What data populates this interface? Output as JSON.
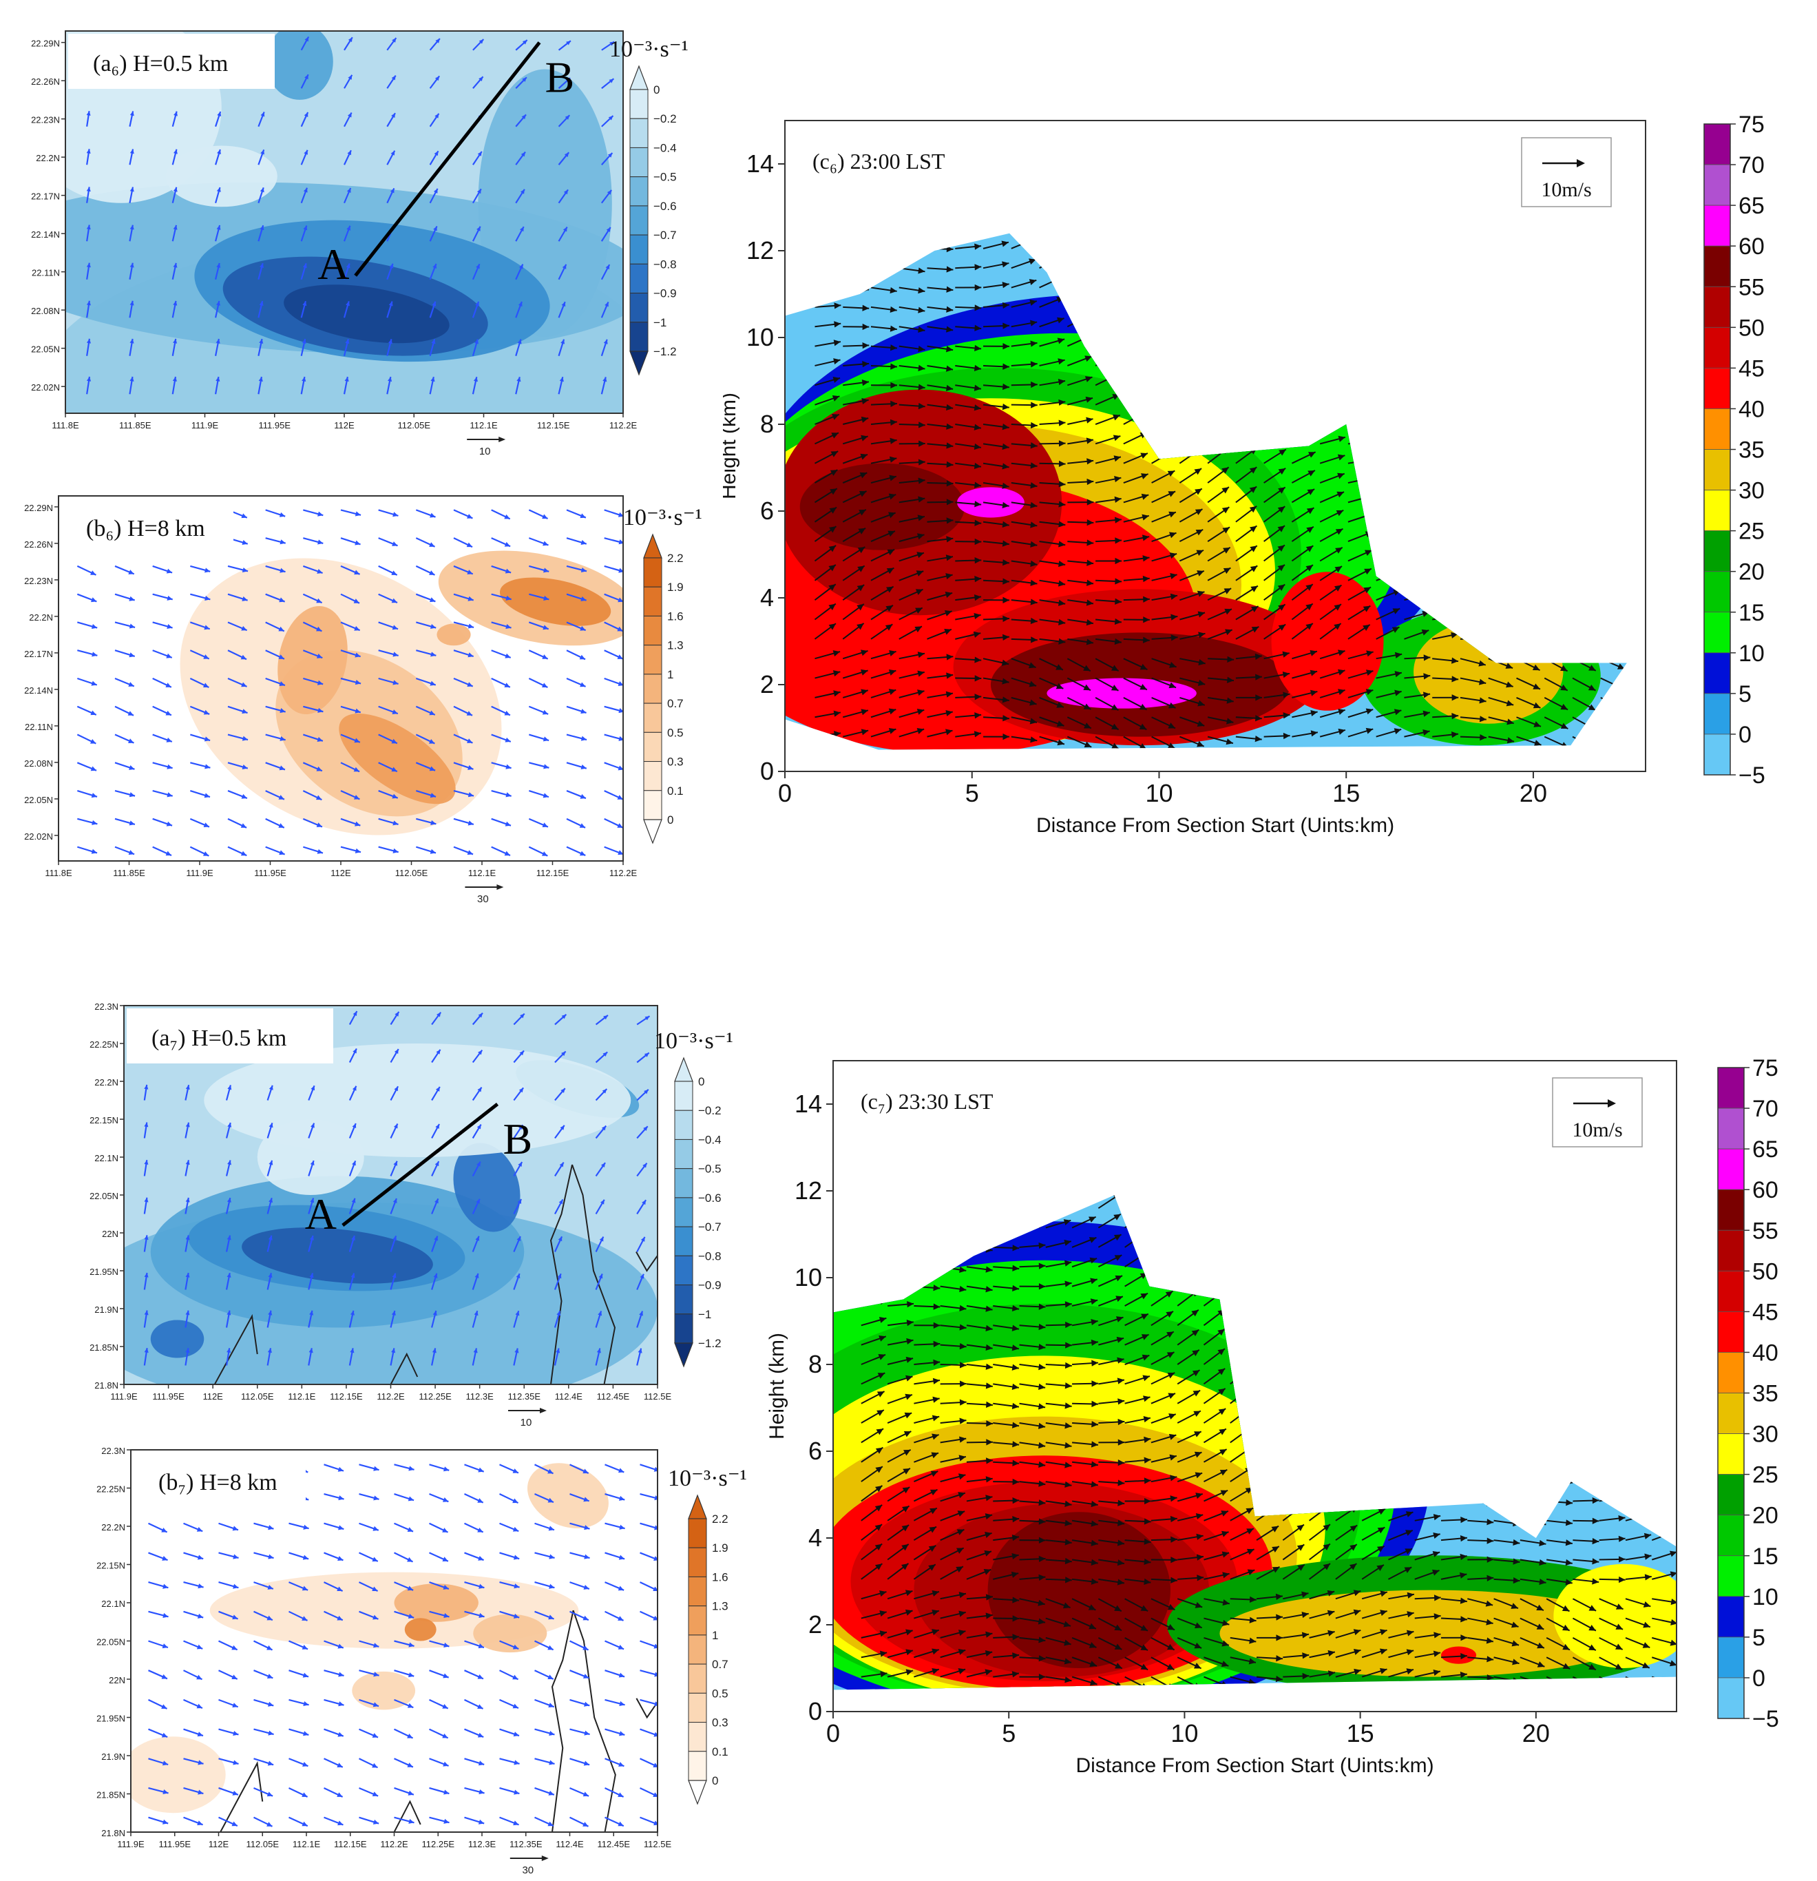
{
  "colors": {
    "vector_blue": "#2a52ff",
    "vector_black": "#111111",
    "neg_vort": [
      "#d7ecf6",
      "#b7dcee",
      "#95cbe6",
      "#73b8de",
      "#54a5d7",
      "#3a8fd0",
      "#2d75c6",
      "#225dad",
      "#17448f",
      "#0e2f73"
    ],
    "pos_vort": [
      "#ffffff",
      "#fff4e8",
      "#fde7d2",
      "#fbd8b6",
      "#f8c79a",
      "#f4b47c",
      "#ef9f5c",
      "#e88a3f",
      "#e07528",
      "#d46214"
    ],
    "reflectivity": [
      "#00e5e5",
      "#66c8f5",
      "#2aa0e6",
      "#0010d8",
      "#00ef00",
      "#00c800",
      "#00a000",
      "#ffff00",
      "#e8c000",
      "#ff9000",
      "#ff0000",
      "#d40000",
      "#b00000",
      "#7a0000",
      "#ff00ff",
      "#b050d0",
      "#960090"
    ]
  },
  "figures": [
    {
      "id": "a6",
      "label": "(a₆) H=0.5 km",
      "unit": "10⁻³·s⁻¹",
      "kind": "negative",
      "colorbar_ticks": [
        "0",
        "−0.2",
        "−0.4",
        "−0.5",
        "−0.6",
        "−0.7",
        "−0.8",
        "−0.9",
        "−1",
        "−1.2"
      ],
      "lat_ticks": [
        "22.29N",
        "22.26N",
        "22.23N",
        "22.2N",
        "22.17N",
        "22.14N",
        "22.11N",
        "22.08N",
        "22.05N",
        "22.02N"
      ],
      "lon_ticks": [
        "111.8E",
        "111.85E",
        "111.9E",
        "111.95E",
        "112E",
        "112.05E",
        "112.1E",
        "112.15E",
        "112.2E"
      ],
      "ref_vector": "10",
      "section_labels": {
        "start": "A",
        "end": "B"
      }
    },
    {
      "id": "b6",
      "label": "(b₆) H=8 km",
      "unit": "10⁻³·s⁻¹",
      "kind": "positive",
      "colorbar_ticks": [
        "2.2",
        "1.9",
        "1.6",
        "1.3",
        "1",
        "0.7",
        "0.5",
        "0.3",
        "0.1",
        "0"
      ],
      "lat_ticks": [
        "22.29N",
        "22.26N",
        "22.23N",
        "22.2N",
        "22.17N",
        "22.14N",
        "22.11N",
        "22.08N",
        "22.05N",
        "22.02N"
      ],
      "lon_ticks": [
        "111.8E",
        "111.85E",
        "111.9E",
        "111.95E",
        "112E",
        "112.05E",
        "112.1E",
        "112.15E",
        "112.2E"
      ],
      "ref_vector": "30"
    },
    {
      "id": "a7",
      "label": "(a₇) H=0.5 km",
      "unit": "10⁻³·s⁻¹",
      "kind": "negative",
      "colorbar_ticks": [
        "0",
        "−0.2",
        "−0.4",
        "−0.5",
        "−0.6",
        "−0.7",
        "−0.8",
        "−0.9",
        "−1",
        "−1.2"
      ],
      "lat_ticks": [
        "22.3N",
        "22.25N",
        "22.2N",
        "22.15N",
        "22.1N",
        "22.05N",
        "22N",
        "21.95N",
        "21.9N",
        "21.85N",
        "21.8N"
      ],
      "lon_ticks": [
        "111.9E",
        "111.95E",
        "112E",
        "112.05E",
        "112.1E",
        "112.15E",
        "112.2E",
        "112.25E",
        "112.3E",
        "112.35E",
        "112.4E",
        "112.45E",
        "112.5E"
      ],
      "ref_vector": "10",
      "section_labels": {
        "start": "A",
        "end": "B"
      }
    },
    {
      "id": "b7",
      "label": "(b₇) H=8 km",
      "unit": "10⁻³·s⁻¹",
      "kind": "positive",
      "colorbar_ticks": [
        "2.2",
        "1.9",
        "1.6",
        "1.3",
        "1",
        "0.7",
        "0.5",
        "0.3",
        "0.1",
        "0"
      ],
      "lat_ticks": [
        "22.3N",
        "22.25N",
        "22.2N",
        "22.15N",
        "22.1N",
        "22.05N",
        "22N",
        "21.95N",
        "21.9N",
        "21.85N",
        "21.8N"
      ],
      "lon_ticks": [
        "111.9E",
        "111.95E",
        "112E",
        "112.05E",
        "112.1E",
        "112.15E",
        "112.2E",
        "112.25E",
        "112.3E",
        "112.35E",
        "112.4E",
        "112.45E",
        "112.5E"
      ],
      "ref_vector": "30"
    }
  ],
  "chart_data": [
    {
      "id": "c6",
      "type": "heatmap",
      "title": "(c₆) 23:00 LST",
      "xlabel": "Distance From Section Start (Uints:km)",
      "ylabel": "Height (km)",
      "xlim": [
        0,
        23
      ],
      "ylim": [
        0,
        15
      ],
      "xticks": [
        "0",
        "5",
        "10",
        "15",
        "20"
      ],
      "yticks": [
        "0",
        "2",
        "4",
        "6",
        "8",
        "10",
        "12",
        "14"
      ],
      "ref_vector_label": "10m/s",
      "colorbar_ticks": [
        "75",
        "70",
        "65",
        "60",
        "55",
        "50",
        "45",
        "40",
        "35",
        "30",
        "25",
        "20",
        "15",
        "10",
        "5",
        "0",
        "−5"
      ],
      "colorbar_levels": [
        -5,
        0,
        5,
        10,
        15,
        20,
        25,
        30,
        35,
        40,
        45,
        50,
        55,
        60,
        65,
        70,
        75
      ],
      "echo_top_km": [
        [
          0,
          10.5
        ],
        [
          2,
          11.0
        ],
        [
          4,
          12.0
        ],
        [
          6,
          12.4
        ],
        [
          7,
          11.5
        ],
        [
          8,
          9.8
        ],
        [
          10,
          7.2
        ],
        [
          14,
          7.5
        ],
        [
          15,
          8.0
        ],
        [
          15.8,
          4.5
        ],
        [
          19,
          2.5
        ],
        [
          22.5,
          2.5
        ]
      ],
      "echo_bottom_km": [
        [
          0,
          1.2
        ],
        [
          2.5,
          0.5
        ],
        [
          21,
          0.6
        ]
      ],
      "core_max_dbz": 65,
      "core_location_km": [
        [
          5.5,
          6.2
        ],
        [
          9,
          1.8
        ]
      ]
    },
    {
      "id": "c7",
      "type": "heatmap",
      "title": "(c₇) 23:30 LST",
      "xlabel": "Distance From Section Start (Uints:km)",
      "ylabel": "Height (km)",
      "xlim": [
        0,
        24
      ],
      "ylim": [
        0,
        15
      ],
      "xticks": [
        "0",
        "5",
        "10",
        "15",
        "20"
      ],
      "yticks": [
        "0",
        "2",
        "4",
        "6",
        "8",
        "10",
        "12",
        "14"
      ],
      "ref_vector_label": "10m/s",
      "colorbar_ticks": [
        "75",
        "70",
        "65",
        "60",
        "55",
        "50",
        "45",
        "40",
        "35",
        "30",
        "25",
        "20",
        "15",
        "10",
        "5",
        "0",
        "−5"
      ],
      "colorbar_levels": [
        -5,
        0,
        5,
        10,
        15,
        20,
        25,
        30,
        35,
        40,
        45,
        50,
        55,
        60,
        65,
        70,
        75
      ],
      "echo_top_km": [
        [
          0,
          9.2
        ],
        [
          2,
          9.5
        ],
        [
          4,
          10.5
        ],
        [
          6,
          11.2
        ],
        [
          8,
          11.9
        ],
        [
          9,
          9.8
        ],
        [
          11,
          9.5
        ],
        [
          12,
          4.5
        ],
        [
          18.5,
          4.8
        ],
        [
          20,
          4.0
        ],
        [
          21,
          5.3
        ],
        [
          24,
          3.8
        ]
      ],
      "echo_bottom_km": [
        [
          0,
          0.5
        ],
        [
          24,
          0.8
        ]
      ],
      "core_max_dbz": 55,
      "core_location_km": [
        [
          7,
          3.0
        ]
      ]
    }
  ]
}
